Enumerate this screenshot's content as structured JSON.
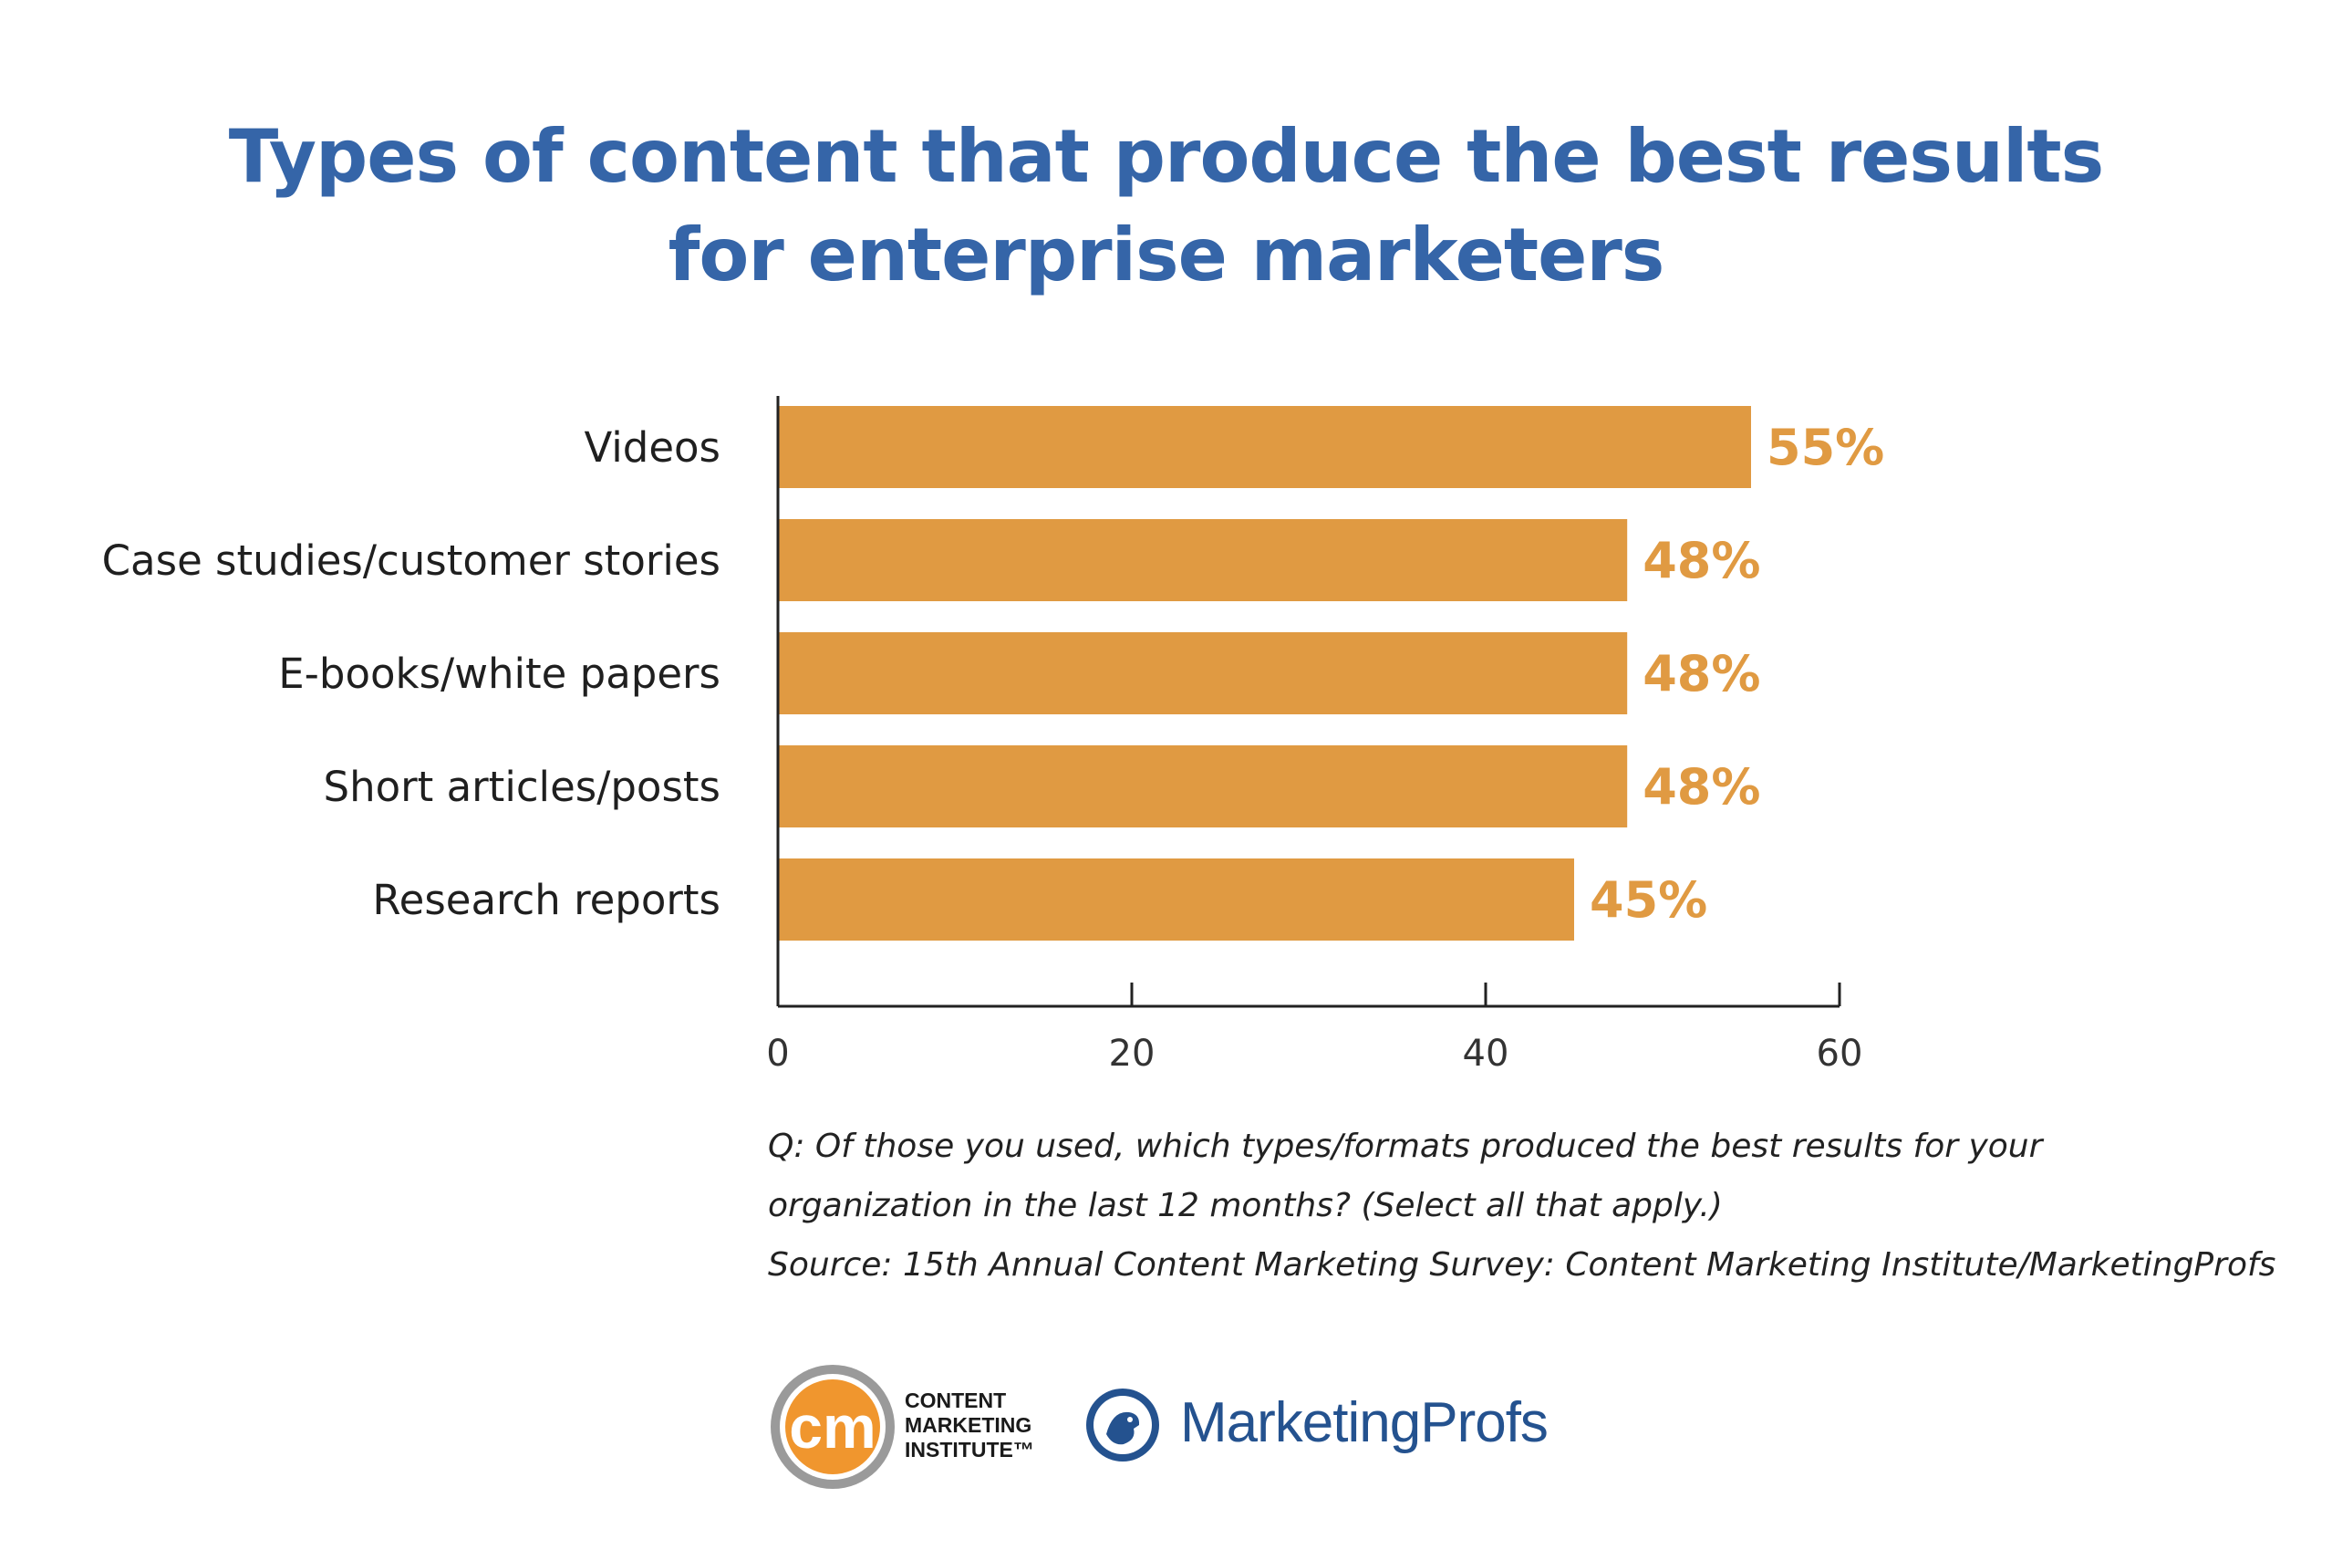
{
  "title_lines": [
    "Types of content that produce the best results",
    "for enterprise marketers"
  ],
  "chart_data": {
    "type": "bar",
    "orientation": "horizontal",
    "title": "Types of content that produce the best results for enterprise marketers",
    "categories": [
      "Videos",
      "Case studies/customer stories",
      "E-books/white papers",
      "Short articles/posts",
      "Research reports"
    ],
    "values": [
      55,
      48,
      48,
      48,
      45
    ],
    "value_labels": [
      "55%",
      "48%",
      "48%",
      "48%",
      "45%"
    ],
    "xlim": [
      0,
      60
    ],
    "x_ticks": [
      "0",
      "20",
      "40",
      "60"
    ],
    "grid": false,
    "legend": "none",
    "bar_color": "#e09a42",
    "label_color": "#e09a42"
  },
  "notes": {
    "question_line1": "Q: Of those you used, which types/formats produced the best results for your",
    "question_line2": "organization in the last 12 months? (Select all that apply.)",
    "source": "Source: 15th Annual Content Marketing Survey: Content Marketing Institute/MarketingProfs"
  },
  "logos": {
    "cmi_mark": "cm",
    "cmi_lines": [
      "CONTENT",
      "MARKETING",
      "INSTITUTE™"
    ],
    "mp_name": "MarketingProfs"
  },
  "colors": {
    "title": "#3565a8",
    "bar": "#e09a42",
    "cmi_orange": "#f0962e",
    "cmi_ring": "#9a9a9a",
    "mp_blue": "#24528f"
  }
}
